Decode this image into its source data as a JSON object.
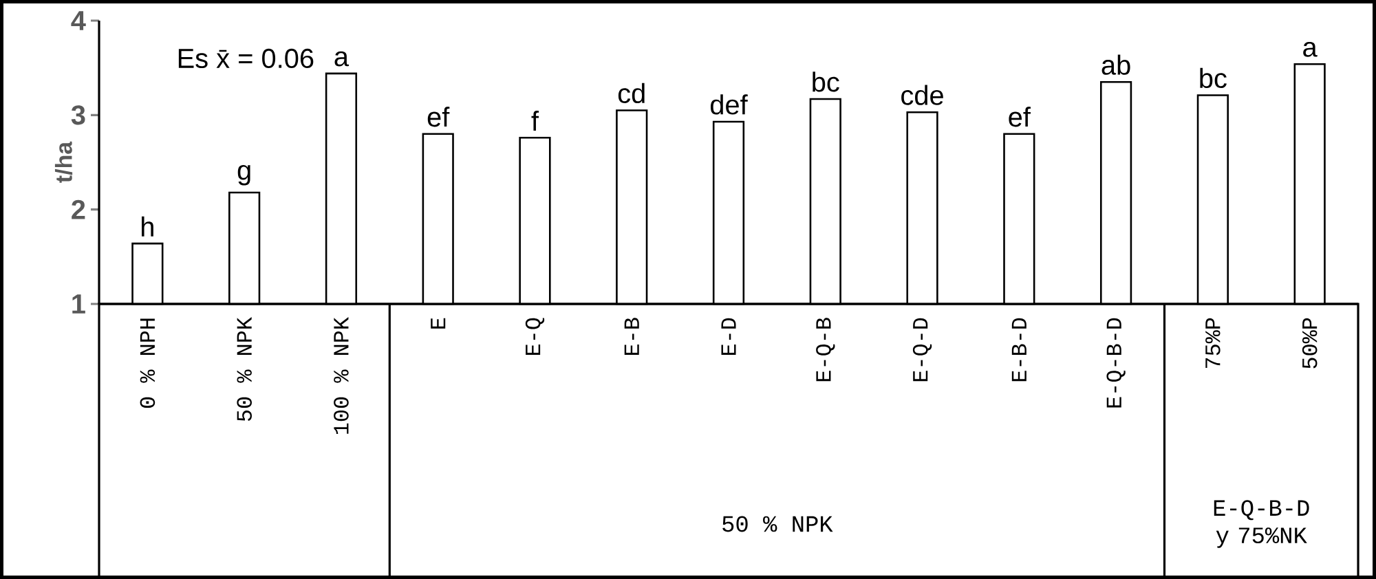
{
  "chart_data": {
    "type": "bar",
    "ylabel": "t/ha",
    "categories": [
      "0 % NPH",
      "50 % NPK",
      "100 % NPK",
      "E",
      "E-Q",
      "E-B",
      "E-D",
      "E-Q-B",
      "E-Q-D",
      "E-B-D",
      "E-Q-B-D",
      "75%P",
      "50%P"
    ],
    "values": [
      1.64,
      2.18,
      3.44,
      2.8,
      2.76,
      3.05,
      2.93,
      3.17,
      3.03,
      2.8,
      3.35,
      3.21,
      3.54
    ],
    "value_labels": [
      "h",
      "g",
      "a",
      "ef",
      "f",
      "cd",
      "def",
      "bc",
      "cde",
      "ef",
      "ab",
      "bc",
      "a"
    ],
    "color": "#ffffff",
    "ylim": [
      1,
      4
    ],
    "yticks": [
      1,
      2,
      3,
      4
    ],
    "annotations": [
      "Es x̄ = 0.06",
      "50 % NPK",
      "E-Q-B-D y 75%NK"
    ]
  }
}
